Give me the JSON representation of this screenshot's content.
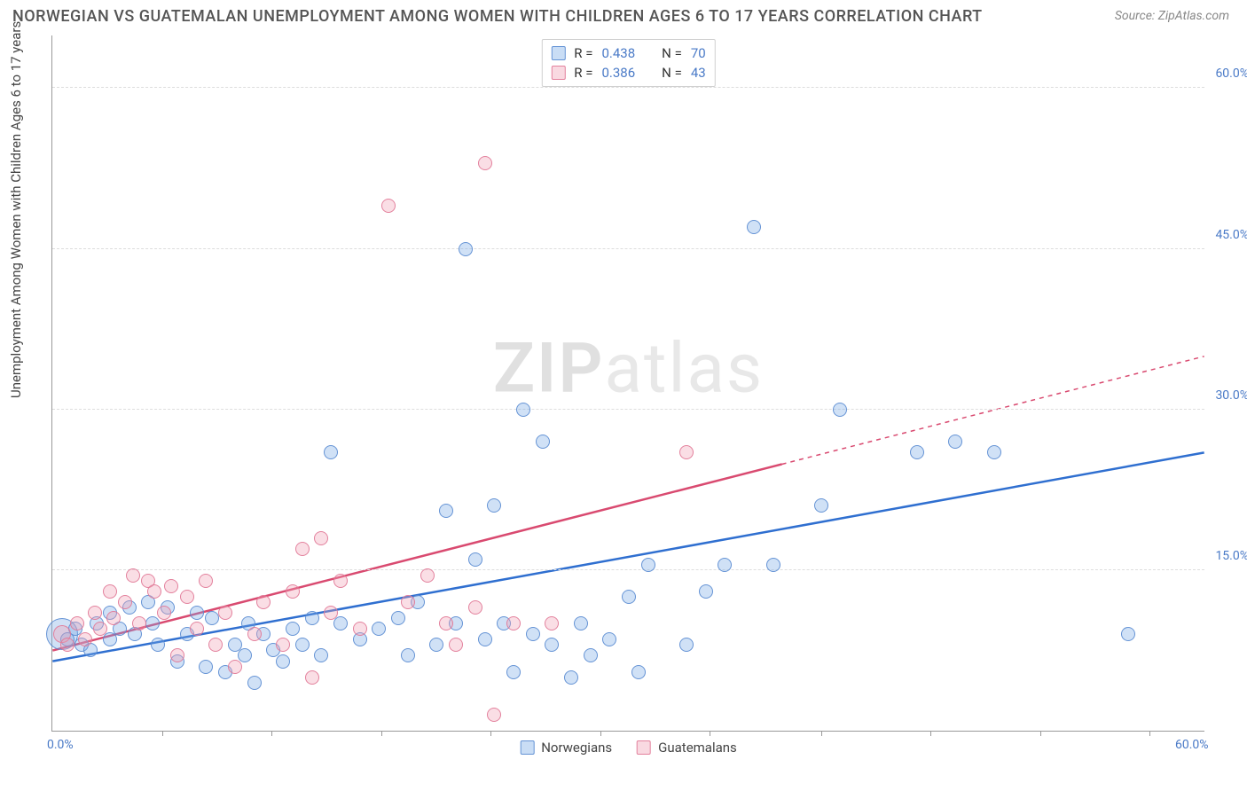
{
  "title": "NORWEGIAN VS GUATEMALAN UNEMPLOYMENT AMONG WOMEN WITH CHILDREN AGES 6 TO 17 YEARS CORRELATION CHART",
  "source": "Source: ZipAtlas.com",
  "y_axis_title": "Unemployment Among Women with Children Ages 6 to 17 years",
  "watermark_a": "ZIP",
  "watermark_b": "atlas",
  "chart": {
    "type": "scatter",
    "xlim": [
      0,
      60
    ],
    "ylim": [
      0,
      65
    ],
    "x_ticks_label": [
      0.0,
      60.0
    ],
    "x_minor_ticks": [
      5.7,
      11.4,
      17.1,
      22.8,
      28.5,
      34.2,
      40.0,
      45.7,
      51.4,
      57.1
    ],
    "y_ticks": [
      15.0,
      30.0,
      45.0,
      60.0
    ],
    "grid_color": "#dddddd",
    "background_color": "#ffffff",
    "tick_label_color": "#4a7ac7",
    "tick_fontsize": 14,
    "series": [
      {
        "name": "Norwegians",
        "color_fill": "rgba(120,170,230,0.35)",
        "color_stroke": "rgba(90,140,210,0.9)",
        "r": 0.438,
        "n": 70,
        "line": {
          "x1": 0,
          "y1": 6.5,
          "x2": 60,
          "y2": 26.0,
          "solid_until_x": 60,
          "color": "#2f6fd0",
          "width": 2.5
        },
        "points": [
          {
            "x": 0.5,
            "y": 9,
            "r": 18
          },
          {
            "x": 0.8,
            "y": 8.5,
            "r": 8
          },
          {
            "x": 1.2,
            "y": 9.5,
            "r": 8
          },
          {
            "x": 1.5,
            "y": 8,
            "r": 8
          },
          {
            "x": 2,
            "y": 7.5,
            "r": 8
          },
          {
            "x": 2.3,
            "y": 10,
            "r": 8
          },
          {
            "x": 3,
            "y": 11,
            "r": 8
          },
          {
            "x": 3,
            "y": 8.5,
            "r": 8
          },
          {
            "x": 3.5,
            "y": 9.5,
            "r": 8
          },
          {
            "x": 4,
            "y": 11.5,
            "r": 8
          },
          {
            "x": 4.3,
            "y": 9,
            "r": 8
          },
          {
            "x": 5,
            "y": 12,
            "r": 8
          },
          {
            "x": 5.2,
            "y": 10,
            "r": 8
          },
          {
            "x": 5.5,
            "y": 8,
            "r": 8
          },
          {
            "x": 6,
            "y": 11.5,
            "r": 8
          },
          {
            "x": 6.5,
            "y": 6.5,
            "r": 8
          },
          {
            "x": 7,
            "y": 9,
            "r": 8
          },
          {
            "x": 7.5,
            "y": 11,
            "r": 8
          },
          {
            "x": 8,
            "y": 6,
            "r": 8
          },
          {
            "x": 8.3,
            "y": 10.5,
            "r": 8
          },
          {
            "x": 9,
            "y": 5.5,
            "r": 8
          },
          {
            "x": 9.5,
            "y": 8,
            "r": 8
          },
          {
            "x": 10,
            "y": 7,
            "r": 8
          },
          {
            "x": 10.2,
            "y": 10,
            "r": 8
          },
          {
            "x": 10.5,
            "y": 4.5,
            "r": 8
          },
          {
            "x": 11,
            "y": 9,
            "r": 8
          },
          {
            "x": 11.5,
            "y": 7.5,
            "r": 8
          },
          {
            "x": 12,
            "y": 6.5,
            "r": 8
          },
          {
            "x": 12.5,
            "y": 9.5,
            "r": 8
          },
          {
            "x": 13,
            "y": 8,
            "r": 8
          },
          {
            "x": 13.5,
            "y": 10.5,
            "r": 8
          },
          {
            "x": 14,
            "y": 7,
            "r": 8
          },
          {
            "x": 14.5,
            "y": 26,
            "r": 8
          },
          {
            "x": 15,
            "y": 10,
            "r": 8
          },
          {
            "x": 16,
            "y": 8.5,
            "r": 8
          },
          {
            "x": 17,
            "y": 9.5,
            "r": 8
          },
          {
            "x": 18,
            "y": 10.5,
            "r": 8
          },
          {
            "x": 18.5,
            "y": 7,
            "r": 8
          },
          {
            "x": 19,
            "y": 12,
            "r": 8
          },
          {
            "x": 20,
            "y": 8,
            "r": 8
          },
          {
            "x": 20.5,
            "y": 20.5,
            "r": 8
          },
          {
            "x": 21,
            "y": 10,
            "r": 8
          },
          {
            "x": 21.5,
            "y": 45,
            "r": 8
          },
          {
            "x": 22,
            "y": 16,
            "r": 8
          },
          {
            "x": 22.5,
            "y": 8.5,
            "r": 8
          },
          {
            "x": 23,
            "y": 21,
            "r": 8
          },
          {
            "x": 23.5,
            "y": 10,
            "r": 8
          },
          {
            "x": 24,
            "y": 5.5,
            "r": 8
          },
          {
            "x": 24.5,
            "y": 30,
            "r": 8
          },
          {
            "x": 25,
            "y": 9,
            "r": 8
          },
          {
            "x": 25.5,
            "y": 27,
            "r": 8
          },
          {
            "x": 26,
            "y": 8,
            "r": 8
          },
          {
            "x": 27,
            "y": 5,
            "r": 8
          },
          {
            "x": 27.5,
            "y": 10,
            "r": 8
          },
          {
            "x": 28,
            "y": 7,
            "r": 8
          },
          {
            "x": 29,
            "y": 8.5,
            "r": 8
          },
          {
            "x": 30,
            "y": 12.5,
            "r": 8
          },
          {
            "x": 30.5,
            "y": 5.5,
            "r": 8
          },
          {
            "x": 31,
            "y": 15.5,
            "r": 8
          },
          {
            "x": 33,
            "y": 8,
            "r": 8
          },
          {
            "x": 34,
            "y": 13,
            "r": 8
          },
          {
            "x": 35,
            "y": 15.5,
            "r": 8
          },
          {
            "x": 36.5,
            "y": 47,
            "r": 8
          },
          {
            "x": 37.5,
            "y": 15.5,
            "r": 8
          },
          {
            "x": 40,
            "y": 21,
            "r": 8
          },
          {
            "x": 41,
            "y": 30,
            "r": 8
          },
          {
            "x": 45,
            "y": 26,
            "r": 8
          },
          {
            "x": 47,
            "y": 27,
            "r": 8
          },
          {
            "x": 49,
            "y": 26,
            "r": 8
          },
          {
            "x": 56,
            "y": 9,
            "r": 8
          }
        ]
      },
      {
        "name": "Guatemalans",
        "color_fill": "rgba(240,160,180,0.35)",
        "color_stroke": "rgba(225,120,150,0.9)",
        "r": 0.386,
        "n": 43,
        "line": {
          "x1": 0,
          "y1": 7.5,
          "x2": 60,
          "y2": 35.0,
          "solid_until_x": 38,
          "color": "#d94a70",
          "width": 2.5
        },
        "points": [
          {
            "x": 0.5,
            "y": 9,
            "r": 10
          },
          {
            "x": 0.8,
            "y": 8,
            "r": 8
          },
          {
            "x": 1.3,
            "y": 10,
            "r": 8
          },
          {
            "x": 1.7,
            "y": 8.5,
            "r": 8
          },
          {
            "x": 2.2,
            "y": 11,
            "r": 8
          },
          {
            "x": 2.5,
            "y": 9.5,
            "r": 8
          },
          {
            "x": 3,
            "y": 13,
            "r": 8
          },
          {
            "x": 3.2,
            "y": 10.5,
            "r": 8
          },
          {
            "x": 3.8,
            "y": 12,
            "r": 8
          },
          {
            "x": 4.2,
            "y": 14.5,
            "r": 8
          },
          {
            "x": 4.5,
            "y": 10,
            "r": 8
          },
          {
            "x": 5,
            "y": 14,
            "r": 8
          },
          {
            "x": 5.3,
            "y": 13,
            "r": 8
          },
          {
            "x": 5.8,
            "y": 11,
            "r": 8
          },
          {
            "x": 6.2,
            "y": 13.5,
            "r": 8
          },
          {
            "x": 6.5,
            "y": 7,
            "r": 8
          },
          {
            "x": 7,
            "y": 12.5,
            "r": 8
          },
          {
            "x": 7.5,
            "y": 9.5,
            "r": 8
          },
          {
            "x": 8,
            "y": 14,
            "r": 8
          },
          {
            "x": 8.5,
            "y": 8,
            "r": 8
          },
          {
            "x": 9,
            "y": 11,
            "r": 8
          },
          {
            "x": 9.5,
            "y": 6,
            "r": 8
          },
          {
            "x": 10.5,
            "y": 9,
            "r": 8
          },
          {
            "x": 11,
            "y": 12,
            "r": 8
          },
          {
            "x": 12,
            "y": 8,
            "r": 8
          },
          {
            "x": 12.5,
            "y": 13,
            "r": 8
          },
          {
            "x": 13,
            "y": 17,
            "r": 8
          },
          {
            "x": 13.5,
            "y": 5,
            "r": 8
          },
          {
            "x": 14,
            "y": 18,
            "r": 8
          },
          {
            "x": 14.5,
            "y": 11,
            "r": 8
          },
          {
            "x": 15,
            "y": 14,
            "r": 8
          },
          {
            "x": 16,
            "y": 9.5,
            "r": 8
          },
          {
            "x": 17.5,
            "y": 49,
            "r": 8
          },
          {
            "x": 18.5,
            "y": 12,
            "r": 8
          },
          {
            "x": 19.5,
            "y": 14.5,
            "r": 8
          },
          {
            "x": 20.5,
            "y": 10,
            "r": 8
          },
          {
            "x": 21,
            "y": 8,
            "r": 8
          },
          {
            "x": 22,
            "y": 11.5,
            "r": 8
          },
          {
            "x": 22.5,
            "y": 53,
            "r": 8
          },
          {
            "x": 23,
            "y": 1.5,
            "r": 8
          },
          {
            "x": 24,
            "y": 10,
            "r": 8
          },
          {
            "x": 26,
            "y": 10,
            "r": 8
          },
          {
            "x": 33,
            "y": 26,
            "r": 8
          }
        ]
      }
    ]
  },
  "legend_top": [
    {
      "swatch": "blue",
      "r_label": "R =",
      "r_val": "0.438",
      "n_label": "N =",
      "n_val": "70"
    },
    {
      "swatch": "pink",
      "r_label": "R =",
      "r_val": "0.386",
      "n_label": "N =",
      "n_val": "43"
    }
  ],
  "legend_bottom": [
    {
      "swatch": "blue",
      "label": "Norwegians"
    },
    {
      "swatch": "pink",
      "label": "Guatemalans"
    }
  ]
}
